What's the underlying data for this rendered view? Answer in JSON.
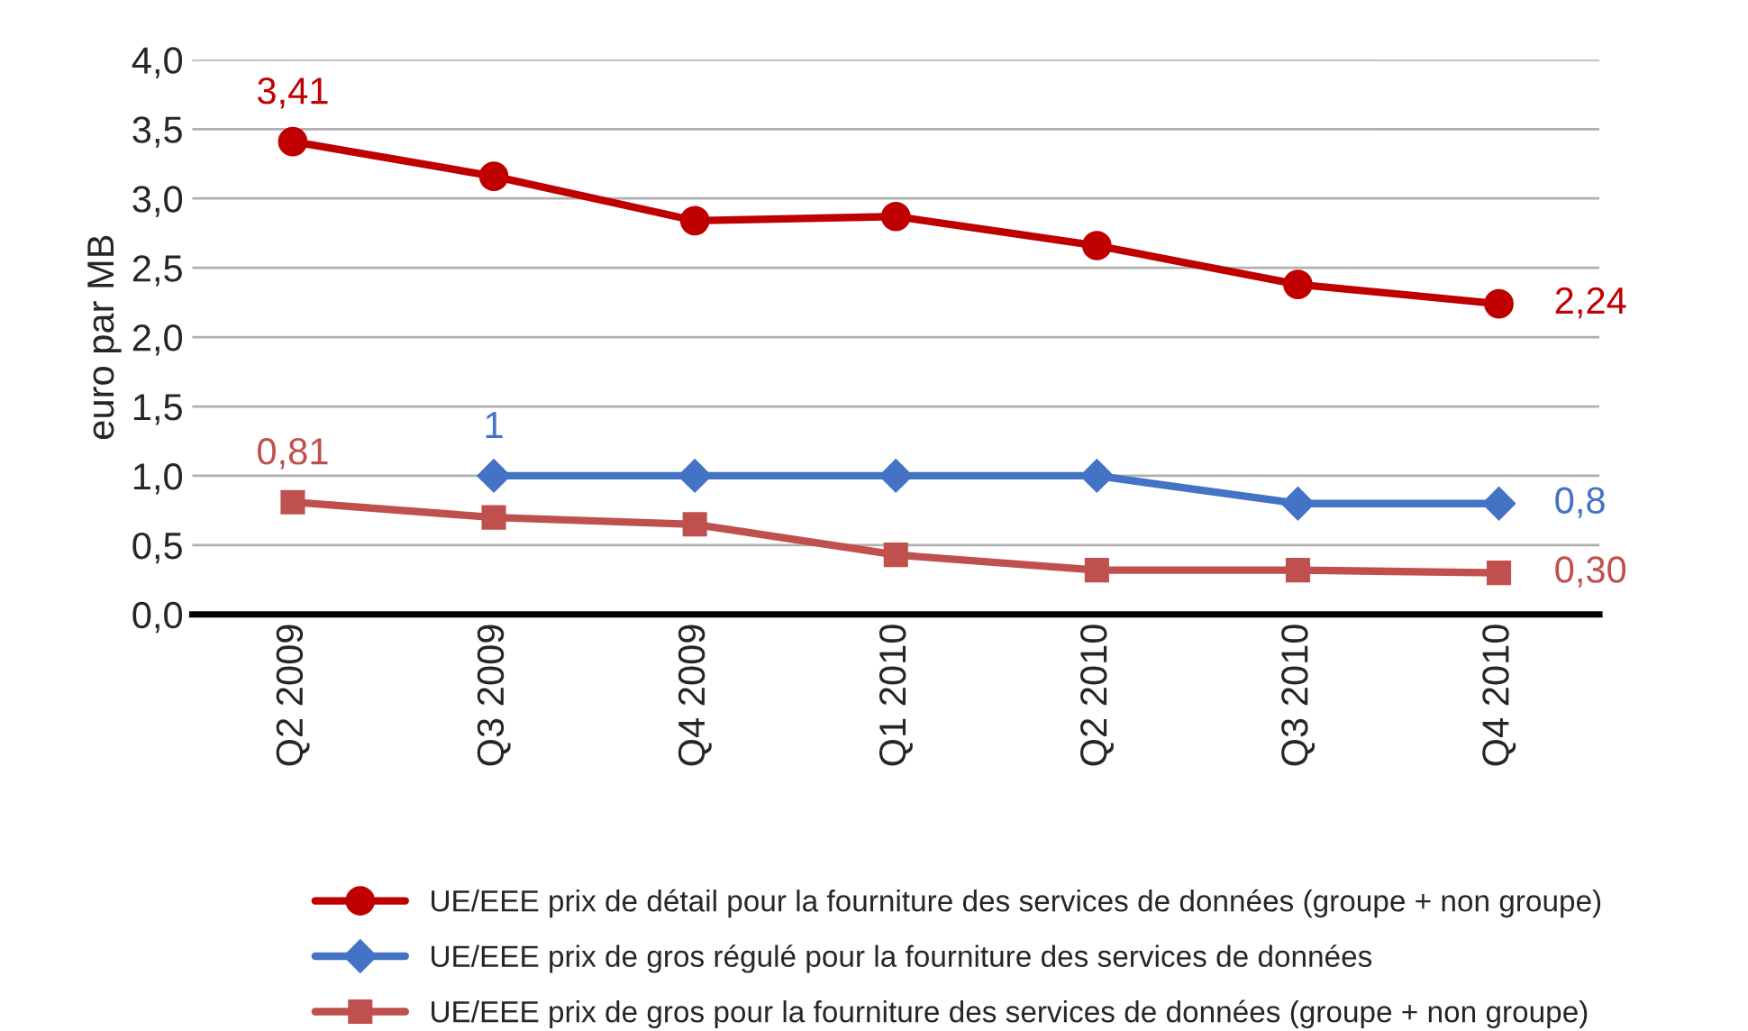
{
  "chart_data": {
    "type": "line",
    "ylabel": "euro par MB",
    "categories": [
      "Q2 2009",
      "Q3 2009",
      "Q4 2009",
      "Q1 2010",
      "Q2 2010",
      "Q3 2010",
      "Q4 2010"
    ],
    "ylim": [
      0,
      4
    ],
    "yticks": [
      {
        "value": 0,
        "label": "0,0"
      },
      {
        "value": 0.5,
        "label": "0,5"
      },
      {
        "value": 1,
        "label": "1,0"
      },
      {
        "value": 1.5,
        "label": "1,5"
      },
      {
        "value": 2,
        "label": "2,0"
      },
      {
        "value": 2.5,
        "label": "2,5"
      },
      {
        "value": 3,
        "label": "3,0"
      },
      {
        "value": 3.5,
        "label": "3,5"
      },
      {
        "value": 4,
        "label": "4,0"
      }
    ],
    "grid": "y",
    "legend": "bottom",
    "series": [
      {
        "name": "UE/EEE prix de détail pour la fourniture des services de données (groupe + non groupe)",
        "color": "#c00000",
        "marker": "circle",
        "values": [
          3.41,
          3.16,
          2.84,
          2.87,
          2.66,
          2.38,
          2.24
        ],
        "value_labels": [
          "3,41",
          null,
          null,
          null,
          null,
          null,
          "2,24"
        ]
      },
      {
        "name": "UE/EEE prix de gros régulé pour la fourniture des services de données",
        "color": "#4472c4",
        "marker": "diamond",
        "values": [
          null,
          1,
          1,
          1,
          1,
          0.8,
          0.8
        ],
        "value_labels": [
          null,
          "1",
          null,
          null,
          null,
          null,
          "0,8"
        ]
      },
      {
        "name": "UE/EEE prix de gros pour la fourniture des services de données (groupe + non groupe)",
        "color": "#c0504d",
        "marker": "square",
        "values": [
          0.81,
          0.7,
          0.65,
          0.43,
          0.32,
          0.32,
          0.3
        ],
        "value_labels": [
          "0,81",
          null,
          null,
          null,
          null,
          null,
          "0,30"
        ]
      }
    ]
  }
}
